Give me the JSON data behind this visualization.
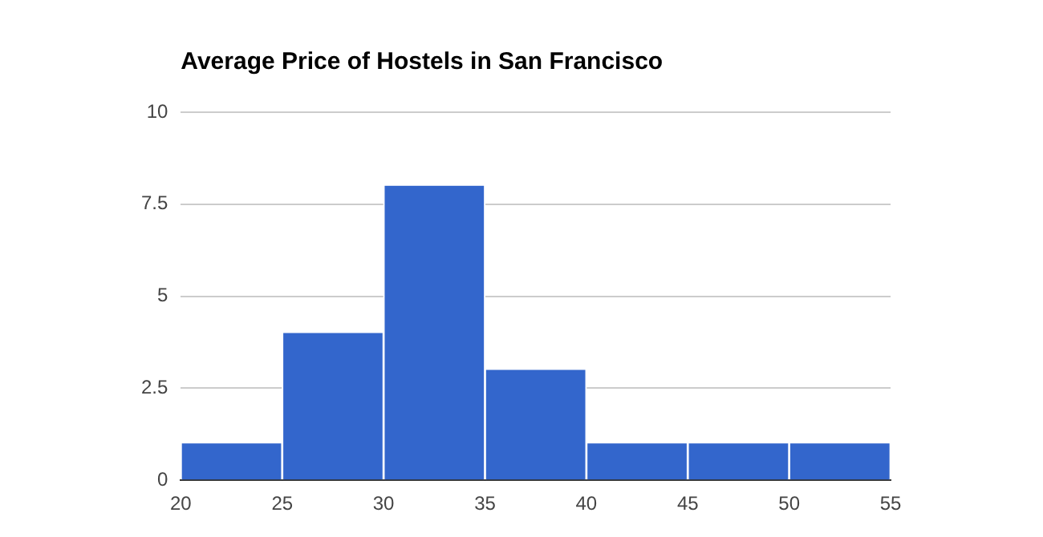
{
  "chart_data": {
    "type": "histogram",
    "title": "Average Price of Hostels in San Francisco",
    "bins": [
      20,
      25,
      30,
      35,
      40,
      45,
      50,
      55
    ],
    "values": [
      1,
      4,
      8,
      3,
      1,
      1,
      1
    ],
    "color": "#3366cc",
    "xlim": [
      20,
      55
    ],
    "xticks": [
      20,
      25,
      30,
      35,
      40,
      45,
      50,
      55
    ],
    "ylim": [
      0,
      10
    ],
    "yticks": [
      0,
      2.5,
      5,
      7.5,
      10
    ],
    "grid": "y"
  }
}
